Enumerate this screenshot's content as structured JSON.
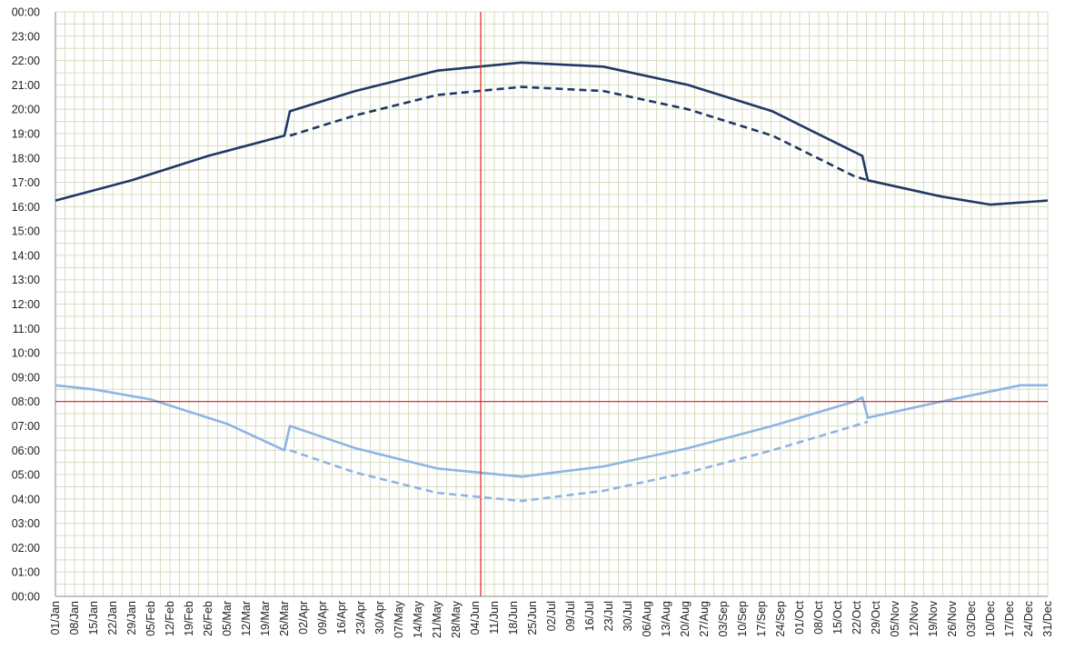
{
  "chart_data": {
    "type": "line",
    "title": "",
    "xlabel": "",
    "ylabel": "",
    "x_tick_labels": [
      "01/Jan",
      "08/Jan",
      "15/Jan",
      "22/Jan",
      "29/Jan",
      "05/Feb",
      "12/Feb",
      "19/Feb",
      "26/Feb",
      "05/Mar",
      "12/Mar",
      "19/Mar",
      "26/Mar",
      "02/Apr",
      "09/Apr",
      "16/Apr",
      "23/Apr",
      "30/Apr",
      "07/May",
      "14/May",
      "21/May",
      "28/May",
      "04/Jun",
      "11/Jun",
      "18/Jun",
      "25/Jun",
      "02/Jul",
      "09/Jul",
      "16/Jul",
      "23/Jul",
      "30/Jul",
      "06/Aug",
      "13/Aug",
      "20/Aug",
      "27/Aug",
      "03/Sep",
      "10/Sep",
      "17/Sep",
      "24/Sep",
      "01/Oct",
      "08/Oct",
      "15/Oct",
      "22/Oct",
      "29/Oct",
      "05/Nov",
      "12/Nov",
      "19/Nov",
      "26/Nov",
      "03/Dec",
      "10/Dec",
      "17/Dec",
      "24/Dec",
      "31/Dec"
    ],
    "y_tick_labels": [
      "00:00",
      "01:00",
      "02:00",
      "03:00",
      "04:00",
      "05:00",
      "06:00",
      "07:00",
      "08:00",
      "09:00",
      "10:00",
      "11:00",
      "12:00",
      "13:00",
      "14:00",
      "15:00",
      "16:00",
      "17:00",
      "18:00",
      "19:00",
      "20:00",
      "21:00",
      "22:00",
      "23:00",
      "00:00"
    ],
    "ylim": [
      0,
      24
    ],
    "xlim": [
      "01/Jan",
      "31/Dec"
    ],
    "grid": true,
    "legend": "none",
    "colors": {
      "dark_series": "#1f3864",
      "light_series": "#8eb4e3",
      "reference_lines": "#e02020",
      "grid": "#d8dcc0",
      "axis": "#8a8a8a"
    },
    "reference_lines": {
      "vertical_x": "06/Jun",
      "horizontal_y": "08:00"
    },
    "series": [
      {
        "style": "solid",
        "color": "#1f3864",
        "x": [
          "01/Jan",
          "29/Jan",
          "26/Feb",
          "26/Mar",
          "28/Mar",
          "21/Apr",
          "21/May",
          "21/Jun",
          "21/Jul",
          "21/Aug",
          "21/Sep",
          "21/Oct",
          "24/Oct",
          "26/Oct",
          "22/Nov",
          "10/Dec",
          "31/Dec"
        ],
        "y": [
          "16:15",
          "17:05",
          "18:05",
          "18:55",
          "19:55",
          "20:45",
          "21:35",
          "21:55",
          "21:45",
          "21:00",
          "19:55",
          "18:15",
          "18:05",
          "17:05",
          "16:25",
          "16:05",
          "16:15"
        ]
      },
      {
        "style": "dashed",
        "color": "#1f3864",
        "x": [
          "28/Mar",
          "21/Apr",
          "21/May",
          "21/Jun",
          "21/Jul",
          "21/Aug",
          "21/Sep",
          "21/Oct",
          "26/Oct"
        ],
        "y": [
          "18:55",
          "19:45",
          "20:35",
          "20:55",
          "20:45",
          "20:00",
          "18:55",
          "17:15",
          "17:05"
        ]
      },
      {
        "style": "solid",
        "color": "#8eb4e3",
        "x": [
          "01/Jan",
          "15/Jan",
          "05/Feb",
          "05/Mar",
          "26/Mar",
          "28/Mar",
          "21/Apr",
          "21/May",
          "21/Jun",
          "21/Jul",
          "21/Aug",
          "21/Sep",
          "21/Oct",
          "24/Oct",
          "26/Oct",
          "22/Nov",
          "21/Dec",
          "31/Dec"
        ],
        "y": [
          "08:40",
          "08:30",
          "08:05",
          "07:05",
          "06:00",
          "07:00",
          "06:05",
          "05:15",
          "04:55",
          "05:20",
          "06:05",
          "07:00",
          "08:00",
          "08:10",
          "07:20",
          "08:00",
          "08:40",
          "08:40"
        ]
      },
      {
        "style": "dashed",
        "color": "#8eb4e3",
        "x": [
          "28/Mar",
          "21/Apr",
          "21/May",
          "21/Jun",
          "21/Jul",
          "21/Aug",
          "21/Sep",
          "21/Oct",
          "26/Oct"
        ],
        "y": [
          "06:00",
          "05:05",
          "04:15",
          "03:55",
          "04:20",
          "05:05",
          "06:00",
          "07:00",
          "07:10"
        ]
      }
    ]
  }
}
